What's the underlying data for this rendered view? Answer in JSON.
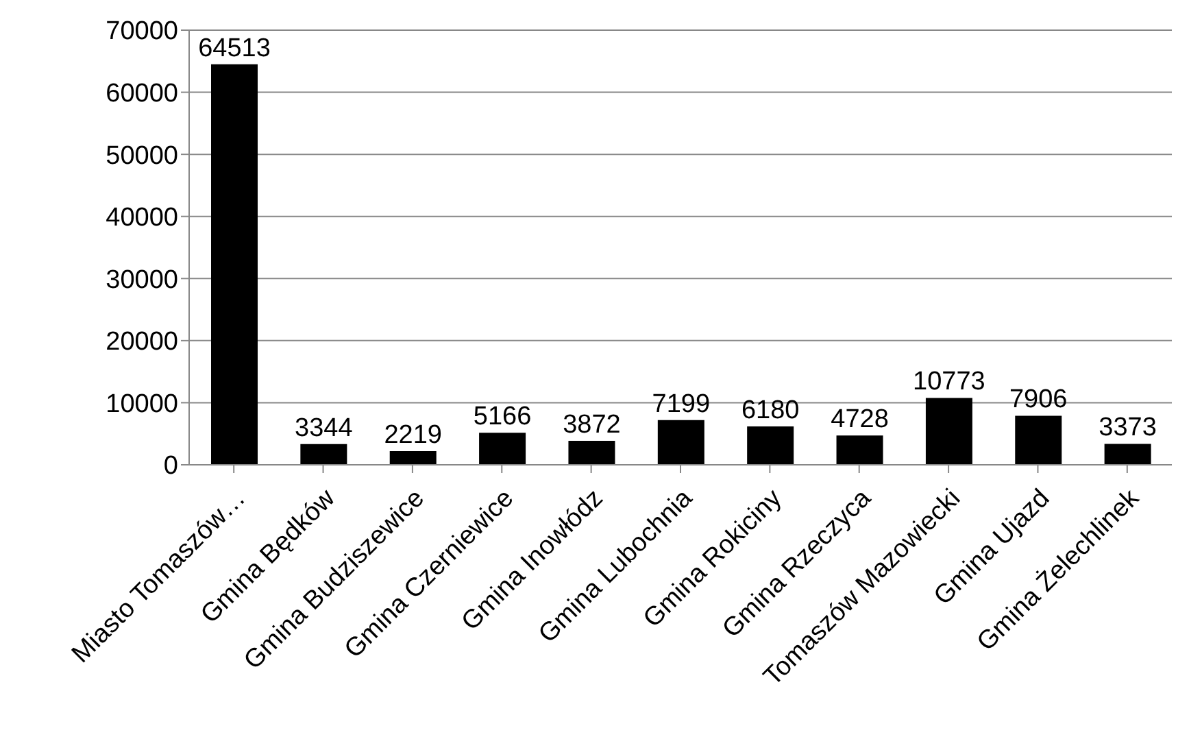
{
  "chart_data": {
    "type": "bar",
    "categories": [
      "Miasto Tomaszów…",
      "Gmina Będków",
      "Gmina Budziszewice",
      "Gmina Czerniewice",
      "Gmina Inowłódz",
      "Gmina Lubochnia",
      "Gmina Rokiciny",
      "Gmina Rzeczyca",
      "Tomaszów Mazowiecki",
      "Gmina Ujazd",
      "Gmina Żelechlinek"
    ],
    "values": [
      64513,
      3344,
      2219,
      5166,
      3872,
      7199,
      6180,
      4728,
      10773,
      7906,
      3373
    ],
    "color": "#000000",
    "ylim": [
      0,
      70000
    ],
    "yticks": [
      0,
      10000,
      20000,
      30000,
      40000,
      50000,
      60000,
      70000
    ],
    "grid": "y",
    "data_labels": true
  }
}
